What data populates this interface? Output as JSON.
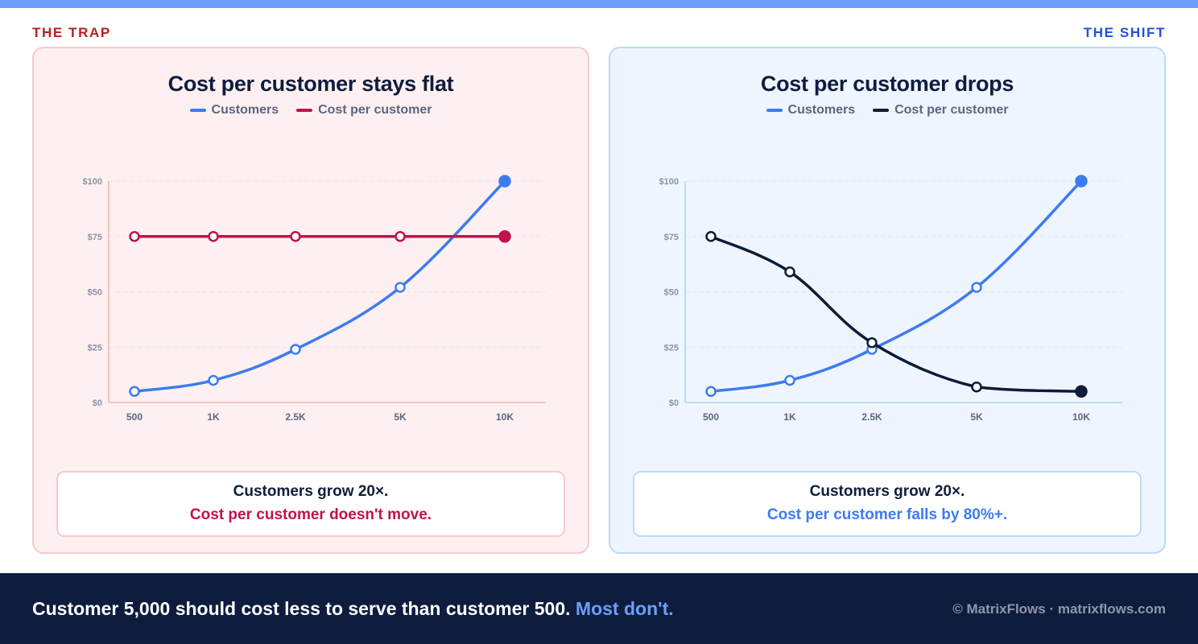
{
  "header": {
    "left_label": "THE TRAP",
    "right_label": "THE SHIFT"
  },
  "colors": {
    "customers": "#3d7bf0",
    "trap_cost": "#c0134a",
    "shift_cost": "#0e1a3a",
    "trap_axis": "#f2b3b8",
    "shift_axis": "#a9d1f4",
    "grid": "#e4e6ec",
    "shift_callout_accent": "#3d7bf0"
  },
  "chart_data": [
    {
      "type": "line",
      "title": "Cost per customer stays flat",
      "categories": [
        "500",
        "1K",
        "2.5K",
        "5K",
        "10K"
      ],
      "x": [
        500,
        1000,
        2500,
        5000,
        10000
      ],
      "y_ticks": [
        "$0",
        "$25",
        "$50",
        "$75",
        "$100"
      ],
      "ylim": [
        0,
        100
      ],
      "grid": true,
      "legend_position": "top-center",
      "series": [
        {
          "name": "Customers",
          "values": [
            5,
            10,
            24,
            52,
            100
          ]
        },
        {
          "name": "Cost per customer",
          "values": [
            75,
            75,
            75,
            75,
            75
          ]
        }
      ],
      "callout": {
        "line1": "Customers grow 20×.",
        "line2": "Cost per customer doesn't move."
      }
    },
    {
      "type": "line",
      "title": "Cost per customer drops",
      "categories": [
        "500",
        "1K",
        "2.5K",
        "5K",
        "10K"
      ],
      "x": [
        500,
        1000,
        2500,
        5000,
        10000
      ],
      "y_ticks": [
        "$0",
        "$25",
        "$50",
        "$75",
        "$100"
      ],
      "ylim": [
        0,
        100
      ],
      "grid": true,
      "legend_position": "top-center",
      "series": [
        {
          "name": "Customers",
          "values": [
            5,
            10,
            24,
            52,
            100
          ]
        },
        {
          "name": "Cost per customer",
          "values": [
            75,
            59,
            27,
            7,
            5
          ]
        }
      ],
      "callout": {
        "line1": "Customers grow 20×.",
        "line2": "Cost per customer falls by 80%+."
      }
    }
  ],
  "footer": {
    "headline": "Customer 5,000 should cost less to serve than customer 500.",
    "headline_accent": "Most don't.",
    "credit": "© MatrixFlows · matrixflows.com"
  }
}
